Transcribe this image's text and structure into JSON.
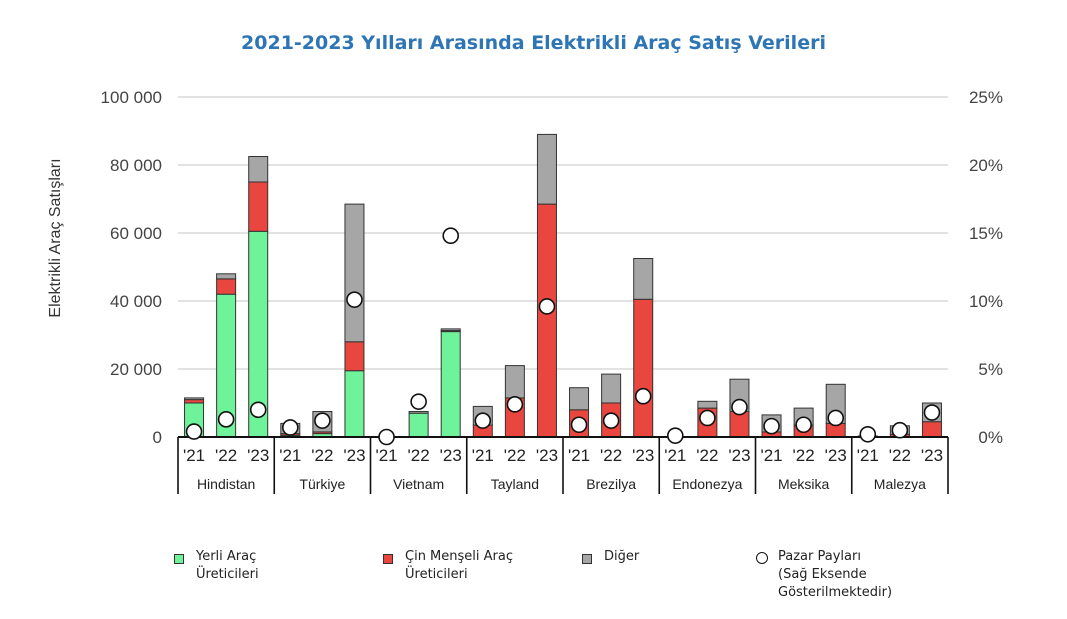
{
  "chart_data": {
    "type": "bar",
    "title": "2021-2023 Yılları Arasında Elektrikli Araç Satış Verileri",
    "ylabel": "Elektrikli Araç Satışları",
    "ylim": [
      0,
      100000
    ],
    "y2lim": [
      0,
      25
    ],
    "y_ticks": [
      "0",
      "20 000",
      "40 000",
      "60 000",
      "80 000",
      "100 000"
    ],
    "y2_ticks": [
      "0%",
      "5%",
      "10%",
      "15%",
      "20%",
      "25%"
    ],
    "stacked": true,
    "years": [
      "'21",
      "'22",
      "'23"
    ],
    "countries": [
      "Hindistan",
      "Türkiye",
      "Vietnam",
      "Tayland",
      "Brezilya",
      "Endonezya",
      "Meksika",
      "Malezya"
    ],
    "series": [
      {
        "name": "Yerli Araç Üreticileri",
        "color": "#6ef29a",
        "values": [
          10000,
          42000,
          60500,
          500,
          1000,
          19500,
          0,
          7000,
          31000,
          0,
          0,
          0,
          0,
          0,
          0,
          0,
          0,
          0,
          0,
          0,
          0,
          0,
          0,
          0
        ]
      },
      {
        "name": "Çin Menşeli Araç Üreticileri",
        "color": "#e8463f",
        "values": [
          1000,
          4500,
          14500,
          500,
          500,
          8500,
          0,
          0,
          300,
          3500,
          11500,
          68500,
          8000,
          10000,
          40500,
          0,
          8500,
          7500,
          1500,
          3500,
          4000,
          0,
          800,
          4500
        ]
      },
      {
        "name": "Diğer",
        "color": "#a6a6a6",
        "values": [
          500,
          1500,
          7500,
          3000,
          6000,
          40500,
          0,
          500,
          500,
          5500,
          9500,
          20500,
          6500,
          8500,
          12000,
          0,
          2000,
          9500,
          5000,
          5000,
          11500,
          300,
          2500,
          5500
        ]
      },
      {
        "name": "Pazar Payları\n(Sağ Eksende Gösterilmektedir)",
        "axis": "right",
        "values": [
          0.4,
          1.3,
          2.0,
          0.7,
          1.2,
          10.1,
          0.0,
          2.6,
          14.8,
          1.2,
          2.4,
          9.6,
          0.9,
          1.2,
          3.0,
          0.1,
          1.4,
          2.2,
          0.8,
          0.9,
          1.4,
          0.2,
          0.5,
          1.8
        ]
      }
    ]
  }
}
